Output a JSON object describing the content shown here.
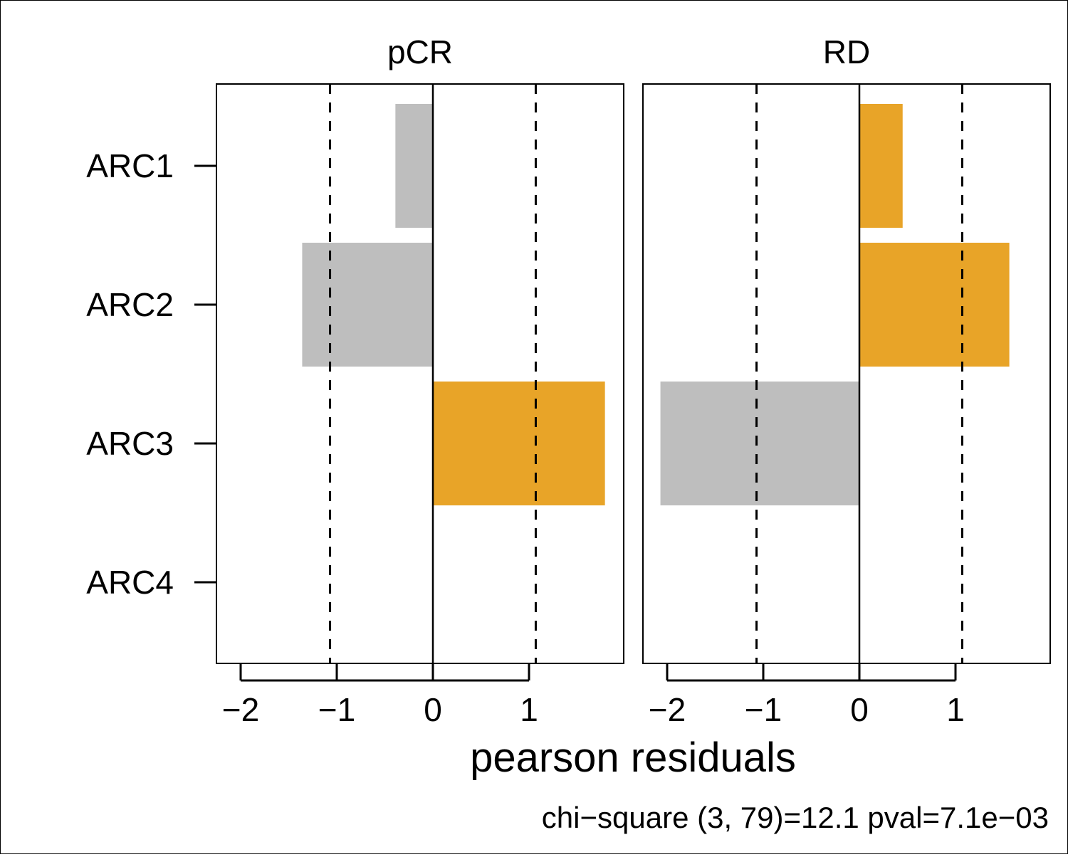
{
  "chart_data": {
    "type": "bar",
    "orientation": "horizontal",
    "categories": [
      "ARC1",
      "ARC2",
      "ARC3",
      "ARC4"
    ],
    "xlabel": "pearson residuals",
    "footnote": "chi−square (3, 79)=12.1 pval=7.1e−03",
    "xlim": [
      -2.25,
      1.95
    ],
    "x_ticks": [
      -2,
      -1,
      0,
      1
    ],
    "x_tick_labels": [
      "−2",
      "−1",
      "0",
      "1"
    ],
    "reference_lines": [
      -1.07,
      1.07
    ],
    "positive_color": "#E8A428",
    "negative_color": "#BEBEBE",
    "panels": [
      {
        "name": "pCR",
        "values": [
          -0.39,
          -1.36,
          1.79,
          0.0
        ]
      },
      {
        "name": "RD",
        "values": [
          0.45,
          1.56,
          -2.07,
          0.0
        ]
      }
    ]
  }
}
